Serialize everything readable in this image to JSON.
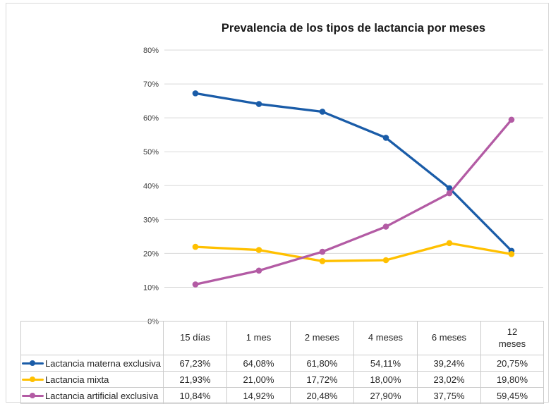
{
  "chart_data": {
    "type": "line",
    "title": "Prevalencia de los tipos de lactancia por meses",
    "categories": [
      "15 días",
      "1 mes",
      "2 meses",
      "4 meses",
      "6 meses",
      "12 meses"
    ],
    "xlabel": "",
    "ylabel": "",
    "ylim": [
      0,
      80
    ],
    "ytick_step": 10,
    "yticks": [
      "0%",
      "10%",
      "20%",
      "30%",
      "40%",
      "50%",
      "60%",
      "70%",
      "80%"
    ],
    "grid": true,
    "gridline_color": "#D9D9D9",
    "axis_text_color": "#404040",
    "legend_position": "table-left-column",
    "series": [
      {
        "name": "Lactancia materna exclusiva",
        "color": "#1A5CA8",
        "values": [
          67.23,
          64.08,
          61.8,
          54.11,
          39.24,
          20.75
        ],
        "value_labels": [
          "67,23%",
          "64,08%",
          "61,80%",
          "54,11%",
          "39,24%",
          "20,75%"
        ]
      },
      {
        "name": "Lactancia mixta",
        "color": "#FFC000",
        "values": [
          21.93,
          21.0,
          17.72,
          18.0,
          23.02,
          19.8
        ],
        "value_labels": [
          "21,93%",
          "21,00%",
          "17,72%",
          "18,00%",
          "23,02%",
          "19,80%"
        ]
      },
      {
        "name": "Lactancia artificial exclusiva",
        "color": "#B35BA4",
        "values": [
          10.84,
          14.92,
          20.48,
          27.9,
          37.75,
          59.45
        ],
        "value_labels": [
          "10,84%",
          "14,92%",
          "20,48%",
          "27,90%",
          "37,75%",
          "59,45%"
        ]
      }
    ]
  },
  "table": {
    "headers": [
      "15 días",
      "1 mes",
      "2 meses",
      "4 meses",
      "6 meses",
      "12\nmeses"
    ],
    "border_color": "#CBCBCB"
  },
  "frame": {
    "border_color": "#D9D9D9"
  }
}
